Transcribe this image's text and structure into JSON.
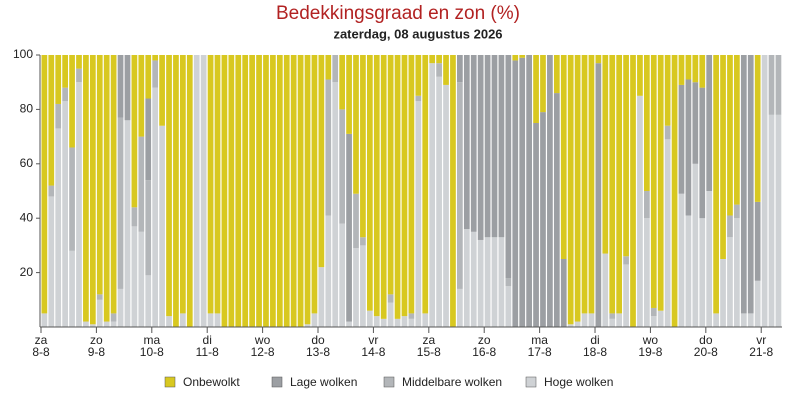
{
  "chart_data": {
    "type": "stacked-bar",
    "title": "Bedekkingsgraad en zon (%)",
    "subtitle": "zaterdag, 08 augustus 2026",
    "categories": [
      [
        "za",
        "8-8"
      ],
      null,
      null,
      null,
      null,
      null,
      null,
      null,
      [
        "zo",
        "9-8"
      ],
      null,
      null,
      null,
      null,
      null,
      null,
      null,
      [
        "ma",
        "10-8"
      ],
      null,
      null,
      null,
      null,
      null,
      null,
      null,
      [
        "di",
        "11-8"
      ],
      null,
      null,
      null,
      null,
      null,
      null,
      null,
      [
        "wo",
        "12-8"
      ],
      null,
      null,
      null,
      null,
      null,
      null,
      null,
      [
        "do",
        "13-8"
      ],
      null,
      null,
      null,
      null,
      null,
      null,
      null,
      [
        "vr",
        "14-8"
      ],
      null,
      null,
      null,
      null,
      null,
      null,
      null,
      [
        "za",
        "15-8"
      ],
      null,
      null,
      null,
      null,
      null,
      null,
      null,
      [
        "zo",
        "16-8"
      ],
      null,
      null,
      null,
      null,
      null,
      null,
      null,
      [
        "ma",
        "17-8"
      ],
      null,
      null,
      null,
      null,
      null,
      null,
      null,
      [
        "di",
        "18-8"
      ],
      null,
      null,
      null,
      null,
      null,
      null,
      null,
      [
        "wo",
        "19-8"
      ],
      null,
      null,
      null,
      null,
      null,
      null,
      null,
      [
        "do",
        "20-8"
      ],
      null,
      null,
      null,
      null,
      null,
      null,
      null,
      [
        "vr",
        "21-8"
      ],
      null,
      null
    ],
    "series": [
      {
        "name": "Onbewolkt",
        "color": "#d8c820",
        "values": [
          95,
          48,
          18,
          12,
          34,
          5,
          98,
          99,
          88,
          98,
          95,
          0,
          0,
          56,
          30,
          16,
          2,
          26,
          96,
          100,
          95,
          100,
          0,
          0,
          95,
          95,
          100,
          100,
          100,
          100,
          100,
          100,
          100,
          100,
          100,
          100,
          100,
          100,
          99,
          95,
          78,
          9,
          0,
          20,
          29,
          51,
          67,
          94,
          96,
          97,
          88,
          97,
          96,
          95,
          15,
          95,
          3,
          3,
          11,
          100,
          0,
          0,
          0,
          0,
          0,
          0,
          0,
          0,
          2,
          1,
          0,
          25,
          21,
          0,
          14,
          75,
          99,
          98,
          95,
          95,
          3,
          73,
          95,
          95,
          74,
          100,
          15,
          50,
          93,
          94,
          26,
          100,
          11,
          9,
          10,
          12,
          0,
          95,
          75,
          59,
          55,
          0,
          0,
          54,
          0,
          0,
          0
        ]
      },
      {
        "name": "Lage wolken",
        "color": "#9c9fa3",
        "values": [
          0,
          0,
          0,
          0,
          0,
          0,
          0,
          0,
          0,
          0,
          0,
          23,
          24,
          0,
          0,
          30,
          0,
          0,
          0,
          0,
          0,
          0,
          0,
          0,
          0,
          0,
          0,
          0,
          0,
          0,
          0,
          0,
          0,
          0,
          0,
          0,
          0,
          0,
          0,
          0,
          0,
          0,
          0,
          0,
          69,
          0,
          0,
          0,
          0,
          0,
          0,
          0,
          0,
          0,
          0,
          0,
          0,
          0,
          0,
          0,
          10,
          64,
          65,
          68,
          67,
          67,
          67,
          82,
          98,
          99,
          100,
          75,
          79,
          100,
          86,
          25,
          0,
          0,
          0,
          0,
          97,
          0,
          0,
          0,
          0,
          0,
          0,
          0,
          0,
          0,
          0,
          0,
          40,
          50,
          30,
          48,
          50,
          0,
          0,
          0,
          0,
          95,
          95,
          29,
          0,
          0,
          0
        ]
      },
      {
        "name": "Middelbare wolken",
        "color": "#b3b6b9",
        "values": [
          0,
          4,
          9,
          5,
          38,
          5,
          0,
          0,
          2,
          0,
          3,
          63,
          0,
          7,
          35,
          35,
          10,
          0,
          0,
          0,
          0,
          0,
          0,
          0,
          0,
          0,
          0,
          0,
          0,
          0,
          0,
          0,
          0,
          0,
          0,
          0,
          0,
          0,
          0,
          0,
          0,
          50,
          10,
          42,
          0,
          20,
          3,
          0,
          0,
          0,
          3,
          0,
          0,
          2,
          2,
          0,
          0,
          5,
          0,
          0,
          76,
          0,
          0,
          0,
          0,
          0,
          0,
          3,
          0,
          0,
          0,
          0,
          0,
          0,
          0,
          0,
          0,
          0,
          0,
          0,
          0,
          0,
          2,
          0,
          3,
          0,
          0,
          10,
          3,
          0,
          5,
          0,
          0,
          0,
          0,
          0,
          0,
          0,
          0,
          8,
          5,
          0,
          0,
          0,
          0,
          22,
          22
        ]
      },
      {
        "name": "Hoge wolken",
        "color": "#cfd2d5",
        "values": [
          5,
          48,
          73,
          83,
          28,
          90,
          2,
          1,
          10,
          2,
          2,
          14,
          76,
          37,
          35,
          19,
          88,
          74,
          4,
          0,
          5,
          0,
          100,
          100,
          5,
          5,
          0,
          0,
          0,
          0,
          0,
          0,
          0,
          0,
          0,
          0,
          0,
          0,
          1,
          5,
          22,
          41,
          90,
          38,
          2,
          29,
          30,
          6,
          4,
          3,
          9,
          3,
          4,
          3,
          83,
          5,
          97,
          92,
          89,
          0,
          14,
          36,
          35,
          32,
          33,
          33,
          33,
          15,
          0,
          0,
          0,
          0,
          0,
          0,
          0,
          0,
          1,
          2,
          5,
          5,
          0,
          27,
          3,
          5,
          23,
          0,
          85,
          40,
          4,
          6,
          69,
          0,
          49,
          41,
          60,
          40,
          50,
          5,
          25,
          33,
          40,
          5,
          5,
          17,
          100,
          78,
          78
        ]
      }
    ],
    "ylim": [
      0,
      100
    ],
    "yticks": [
      20,
      40,
      60,
      80,
      100
    ],
    "title_color": "#b22222"
  }
}
